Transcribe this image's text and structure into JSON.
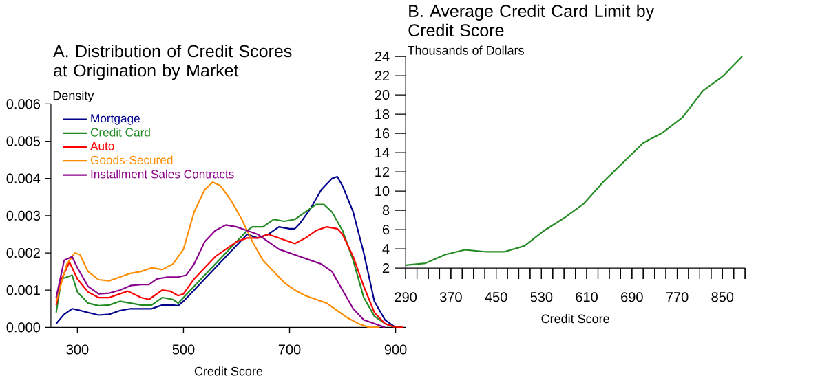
{
  "chart_data": [
    {
      "type": "line",
      "title": "A. Distribution of Credit Scores at Origination by Market",
      "xlabel": "Credit Score",
      "ylabel": "Density",
      "legend": "top left",
      "xlim": [
        250,
        920
      ],
      "ylim": [
        0,
        0.006
      ],
      "xticks": [
        300,
        500,
        700,
        900
      ],
      "yticks": [
        {
          "value": 0,
          "label": "0.000"
        },
        {
          "value": 0.001,
          "label": "0.001"
        },
        {
          "value": 0.002,
          "label": "0.002"
        },
        {
          "value": 0.003,
          "label": "0.003"
        },
        {
          "value": 0.004,
          "label": "0.004"
        },
        {
          "value": 0.005,
          "label": "0.005"
        },
        {
          "value": 0.006,
          "label": "0.006"
        }
      ],
      "series": [
        {
          "name": "Mortgage",
          "color": "#00008b",
          "x": [
            260,
            275,
            290,
            300,
            320,
            340,
            360,
            380,
            400,
            420,
            440,
            460,
            480,
            490,
            500,
            520,
            540,
            560,
            580,
            600,
            620,
            640,
            660,
            680,
            700,
            710,
            720,
            740,
            760,
            780,
            790,
            800,
            820,
            840,
            860,
            880,
            900,
            910
          ],
          "values": [
            0.0001,
            0.00035,
            0.0005,
            0.00047,
            0.0004,
            0.00033,
            0.00035,
            0.00045,
            0.0005,
            0.0005,
            0.0005,
            0.0006,
            0.0006,
            0.00058,
            0.0007,
            0.001,
            0.0013,
            0.0016,
            0.0019,
            0.0022,
            0.0025,
            0.0024,
            0.0025,
            0.0027,
            0.00265,
            0.00265,
            0.0028,
            0.0032,
            0.0037,
            0.004,
            0.00405,
            0.0038,
            0.0031,
            0.002,
            0.0007,
            0.0002,
            0,
            0
          ]
        },
        {
          "name": "Credit Card",
          "color": "#228b22",
          "x": [
            260,
            270,
            290,
            300,
            320,
            340,
            360,
            380,
            400,
            420,
            440,
            460,
            480,
            490,
            500,
            520,
            540,
            560,
            580,
            600,
            620,
            630,
            650,
            670,
            690,
            710,
            730,
            750,
            765,
            780,
            800,
            820,
            840,
            860,
            880,
            900,
            910
          ],
          "values": [
            0.0004,
            0.0013,
            0.0014,
            0.00095,
            0.00065,
            0.00058,
            0.0006,
            0.0007,
            0.00065,
            0.0006,
            0.0006,
            0.0008,
            0.00075,
            0.00065,
            0.0008,
            0.0011,
            0.0014,
            0.0017,
            0.002,
            0.0023,
            0.0026,
            0.0027,
            0.0027,
            0.0029,
            0.00285,
            0.0029,
            0.0031,
            0.0033,
            0.0033,
            0.0031,
            0.0026,
            0.0018,
            0.0008,
            0.0003,
            0.0001,
            0,
            0
          ]
        },
        {
          "name": "Auto",
          "color": "#ff0000",
          "x": [
            260,
            270,
            285,
            300,
            320,
            340,
            360,
            380,
            395,
            420,
            435,
            460,
            475,
            490,
            500,
            520,
            540,
            560,
            580,
            600,
            620,
            640,
            660,
            680,
            700,
            710,
            730,
            750,
            770,
            790,
            800,
            820,
            840,
            860,
            880,
            900,
            915
          ],
          "values": [
            0.0006,
            0.0013,
            0.00175,
            0.0013,
            0.00095,
            0.0008,
            0.0008,
            0.0009,
            0.00097,
            0.0008,
            0.00075,
            0.001,
            0.00097,
            0.00085,
            0.0009,
            0.0013,
            0.0016,
            0.0019,
            0.0021,
            0.0023,
            0.0024,
            0.0024,
            0.0025,
            0.0024,
            0.0023,
            0.00225,
            0.0024,
            0.0026,
            0.0027,
            0.00265,
            0.0025,
            0.0019,
            0.0011,
            0.0004,
            0.0001,
            0,
            0
          ]
        },
        {
          "name": "Goods-Secured",
          "color": "#ff8c00",
          "x": [
            260,
            280,
            295,
            305,
            320,
            340,
            360,
            380,
            400,
            420,
            440,
            460,
            480,
            500,
            520,
            540,
            555,
            570,
            590,
            610,
            630,
            650,
            670,
            690,
            710,
            730,
            750,
            770,
            790,
            810,
            830,
            850,
            870
          ],
          "values": [
            0.0007,
            0.0017,
            0.002,
            0.00195,
            0.0015,
            0.00128,
            0.00125,
            0.00135,
            0.00145,
            0.0015,
            0.0016,
            0.00155,
            0.0017,
            0.0021,
            0.0031,
            0.0037,
            0.0039,
            0.0038,
            0.0034,
            0.0029,
            0.0023,
            0.0018,
            0.0015,
            0.0012,
            0.001,
            0.00085,
            0.00075,
            0.00065,
            0.00045,
            0.00025,
            0.0001,
            0,
            0
          ]
        },
        {
          "name": "Installment Sales Contracts",
          "color": "#8b008b",
          "x": [
            260,
            275,
            290,
            300,
            320,
            340,
            360,
            380,
            400,
            420,
            435,
            450,
            470,
            490,
            505,
            520,
            540,
            560,
            580,
            600,
            620,
            640,
            660,
            680,
            700,
            720,
            740,
            760,
            780,
            800,
            820,
            840,
            860,
            880
          ],
          "values": [
            0.0008,
            0.0018,
            0.0019,
            0.0016,
            0.0011,
            0.0009,
            0.00092,
            0.001,
            0.00112,
            0.00115,
            0.00115,
            0.0013,
            0.00135,
            0.00135,
            0.0014,
            0.0017,
            0.0023,
            0.0026,
            0.00275,
            0.0027,
            0.0026,
            0.0025,
            0.0023,
            0.0021,
            0.002,
            0.0019,
            0.0018,
            0.0017,
            0.0015,
            0.001,
            0.0005,
            0.0002,
            0.0001,
            0
          ]
        }
      ]
    },
    {
      "type": "line",
      "title": "B. Average Credit Card Limit by Credit Score",
      "xlabel": "Credit Score",
      "ylabel": "Thousands of Dollars",
      "xlim": [
        290,
        890
      ],
      "ylim": [
        2,
        24
      ],
      "xticks": [
        290,
        {
          "value": 310,
          "label": null
        },
        {
          "value": 330,
          "label": null
        },
        {
          "value": 350,
          "label": null
        },
        370,
        {
          "value": 390,
          "label": null
        },
        {
          "value": 410,
          "label": null
        },
        {
          "value": 430,
          "label": null
        },
        450,
        {
          "value": 470,
          "label": null
        },
        {
          "value": 490,
          "label": null
        },
        {
          "value": 510,
          "label": null
        },
        530,
        {
          "value": 550,
          "label": null
        },
        {
          "value": 570,
          "label": null
        },
        {
          "value": 590,
          "label": null
        },
        610,
        {
          "value": 630,
          "label": null
        },
        {
          "value": 650,
          "label": null
        },
        {
          "value": 670,
          "label": null
        },
        690,
        {
          "value": 710,
          "label": null
        },
        {
          "value": 730,
          "label": null
        },
        {
          "value": 750,
          "label": null
        },
        770,
        {
          "value": 790,
          "label": null
        },
        {
          "value": 810,
          "label": null
        },
        {
          "value": 830,
          "label": null
        },
        850,
        {
          "value": 870,
          "label": null
        },
        {
          "value": 890,
          "label": null
        }
      ],
      "yticks": [
        2,
        4,
        6,
        8,
        10,
        12,
        14,
        16,
        18,
        20,
        22,
        24
      ],
      "x": [
        290,
        325,
        360,
        395,
        430,
        465,
        500,
        535,
        570,
        605,
        640,
        675,
        710,
        745,
        780,
        815,
        850,
        885
      ],
      "series": [
        {
          "color": "#228b22",
          "values": [
            2.3,
            2.5,
            3.4,
            3.9,
            3.7,
            3.7,
            4.3,
            5.9,
            7.2,
            8.7,
            11.0,
            13.0,
            15.0,
            16.1,
            17.7,
            20.4,
            21.9,
            24.0
          ]
        }
      ]
    }
  ]
}
